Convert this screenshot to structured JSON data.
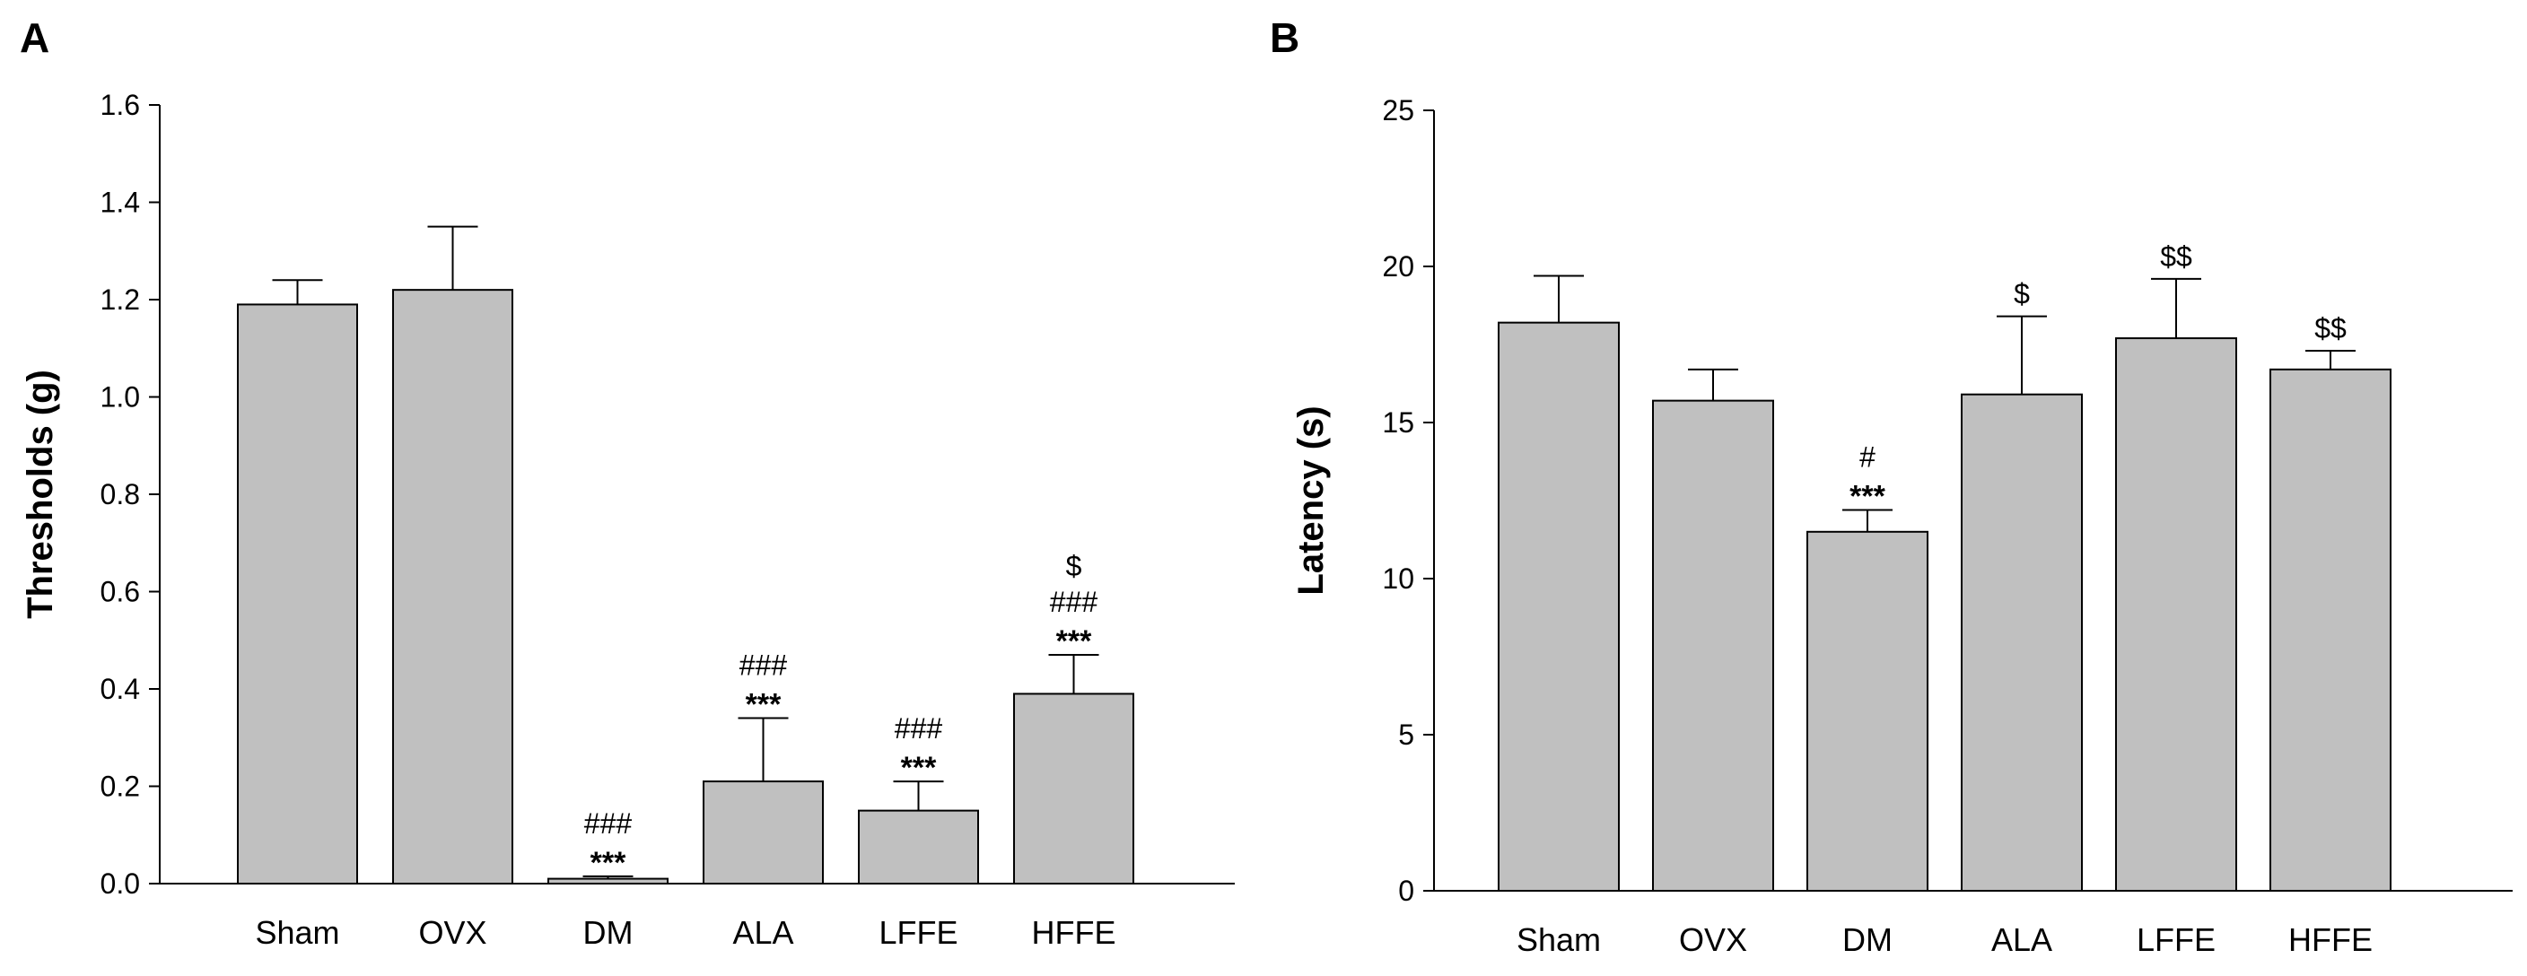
{
  "chart_data": [
    {
      "panel": "A",
      "type": "bar",
      "ylabel": "Thresholds (g)",
      "xlabel": "",
      "ylim": [
        0,
        1.6
      ],
      "yticks": [
        "0.0",
        "0.2",
        "0.4",
        "0.6",
        "0.8",
        "1.0",
        "1.2",
        "1.4",
        "1.6"
      ],
      "categories": [
        "Sham",
        "OVX",
        "DM",
        "ALA",
        "LFFE",
        "HFFE"
      ],
      "values": [
        1.19,
        1.22,
        0.01,
        0.21,
        0.15,
        0.39
      ],
      "errors": [
        0.05,
        0.13,
        0.005,
        0.13,
        0.06,
        0.08
      ],
      "bar_color": "#c0c0c0",
      "grid": false,
      "annotations": [
        [],
        [],
        [
          "###",
          "***"
        ],
        [
          "###",
          "***"
        ],
        [
          "###",
          "***"
        ],
        [
          "$",
          "###",
          "***"
        ]
      ]
    },
    {
      "panel": "B",
      "type": "bar",
      "ylabel": "Latency  (s)",
      "xlabel": "",
      "ylim": [
        0,
        25
      ],
      "yticks": [
        "0",
        "5",
        "10",
        "15",
        "20",
        "25"
      ],
      "categories": [
        "Sham",
        "OVX",
        "DM",
        "ALA",
        "LFFE",
        "HFFE"
      ],
      "values": [
        18.2,
        15.7,
        11.5,
        15.9,
        17.7,
        16.7
      ],
      "errors": [
        1.5,
        1.0,
        0.7,
        2.5,
        1.9,
        0.6
      ],
      "bar_color": "#c0c0c0",
      "grid": false,
      "annotations": [
        [],
        [],
        [
          "#",
          "***"
        ],
        [
          "$"
        ],
        [
          "$$"
        ],
        [
          "$$"
        ]
      ]
    }
  ]
}
